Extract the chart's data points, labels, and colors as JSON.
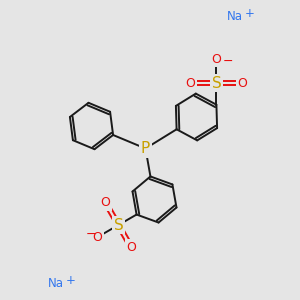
{
  "bg_color": "#e5e5e5",
  "bond_color": "#1a1a1a",
  "P_color": "#c8a000",
  "S_color": "#c8a000",
  "O_color": "#e81010",
  "Na_color": "#3377ee",
  "figsize": [
    3.0,
    3.0
  ],
  "dpi": 100,
  "xlim": [
    0,
    10
  ],
  "ylim": [
    0,
    10
  ]
}
